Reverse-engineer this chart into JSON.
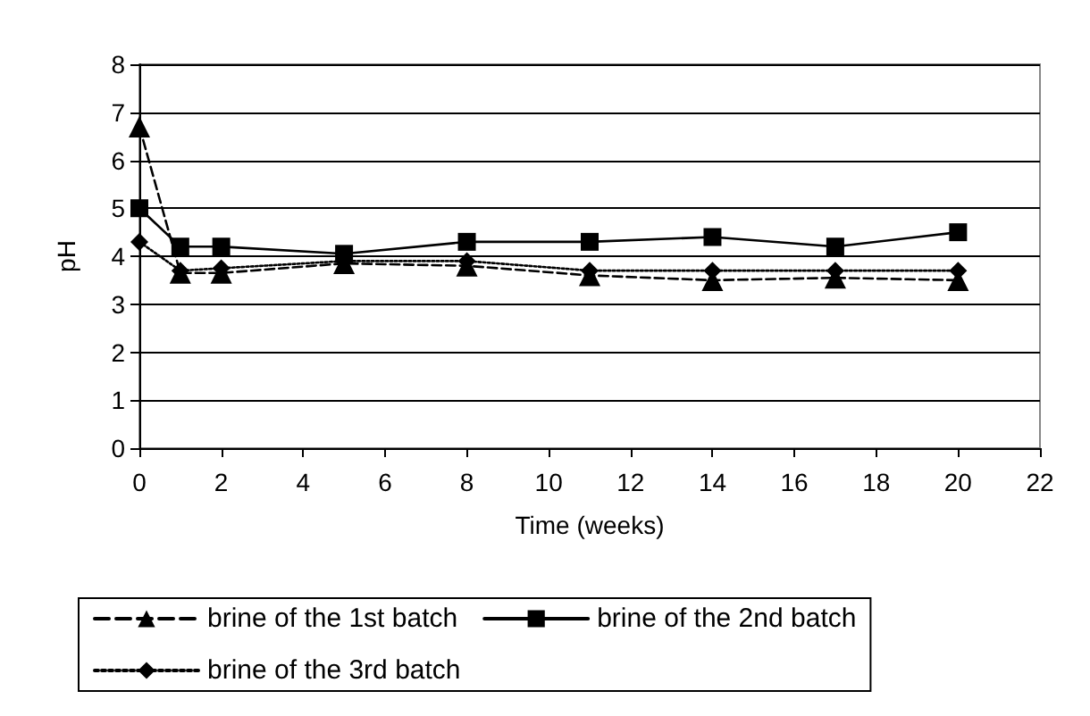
{
  "chart_data": {
    "type": "line",
    "xlabel": "Time (weeks)",
    "ylabel": "pH",
    "x": [
      0,
      1,
      2,
      5,
      8,
      11,
      14,
      17,
      20
    ],
    "xlim": [
      0,
      22
    ],
    "xticks": [
      0,
      2,
      4,
      6,
      8,
      10,
      12,
      14,
      16,
      18,
      20,
      22
    ],
    "ylim": [
      0,
      8
    ],
    "yticks": [
      0,
      1,
      2,
      3,
      4,
      5,
      6,
      7,
      8
    ],
    "grid": "y",
    "legend": "bottom",
    "series": [
      {
        "name": "brine of the 1st batch",
        "color": "#000000",
        "marker": "triangle",
        "line_style": "dashed",
        "values": [
          6.7,
          3.65,
          3.65,
          3.85,
          3.8,
          3.6,
          3.5,
          3.55,
          3.5
        ]
      },
      {
        "name": "brine of the 2nd batch",
        "color": "#000000",
        "marker": "square",
        "line_style": "solid",
        "values": [
          5,
          4.2,
          4.2,
          4.05,
          4.3,
          4.3,
          4.4,
          4.2,
          4.5
        ]
      },
      {
        "name": "brine of the 3rd batch",
        "color": "#000000",
        "marker": "diamond",
        "line_style": "dotted",
        "values": [
          4.3,
          3.7,
          3.75,
          3.9,
          3.9,
          3.7,
          3.7,
          3.7,
          3.7
        ]
      }
    ]
  }
}
